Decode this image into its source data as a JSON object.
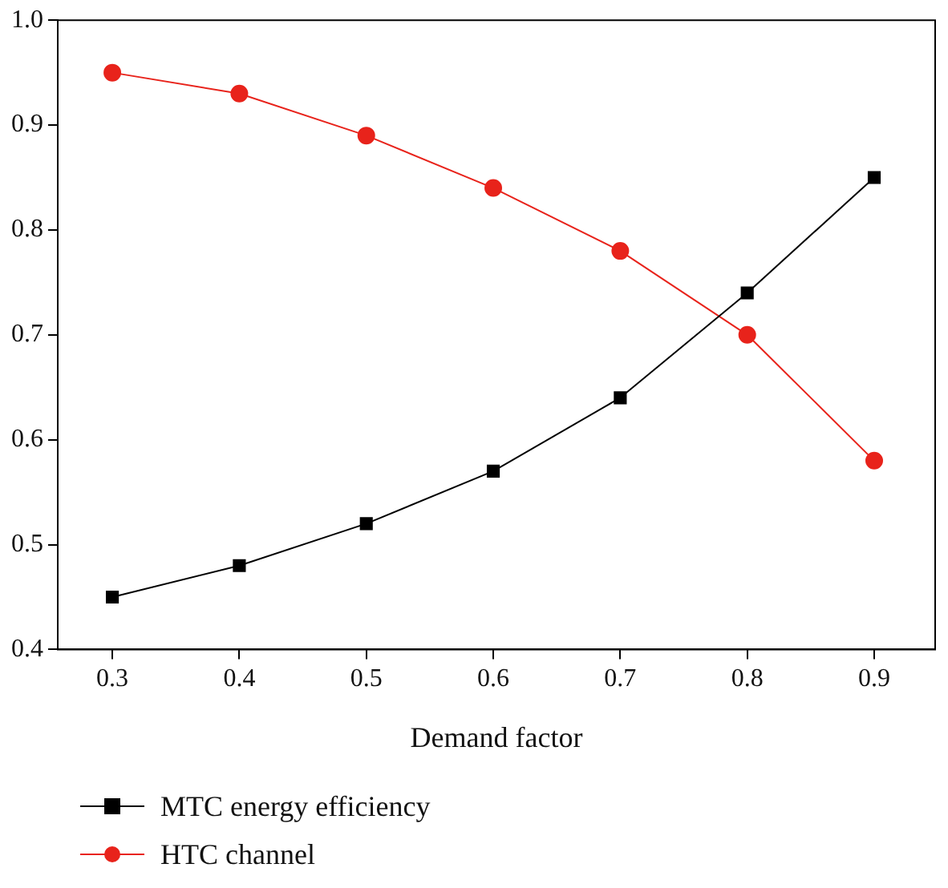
{
  "chart_data": {
    "type": "line",
    "xlabel": "Demand factor",
    "x": [
      0.3,
      0.4,
      0.5,
      0.6,
      0.7,
      0.8,
      0.9
    ],
    "xlim": [
      0.257,
      0.948
    ],
    "xticks": [
      0.3,
      0.4,
      0.5,
      0.6,
      0.7,
      0.8,
      0.9
    ],
    "ylim": [
      0.4,
      1.0
    ],
    "yticks": [
      0.4,
      0.5,
      0.6,
      0.7,
      0.8,
      0.9,
      {
        "value": 1.0,
        "label": "1.0"
      }
    ],
    "grid": false,
    "legend": "bottom left",
    "series": [
      {
        "name": "MTC energy efficiency",
        "color": "#000000",
        "marker": "square",
        "values": [
          0.45,
          0.48,
          0.52,
          0.57,
          0.64,
          0.74,
          0.85
        ]
      },
      {
        "name": "HTC channel",
        "color": "#e8231b",
        "marker": "circle",
        "values": [
          0.95,
          0.93,
          0.89,
          0.84,
          0.78,
          0.7,
          0.58
        ]
      }
    ]
  }
}
